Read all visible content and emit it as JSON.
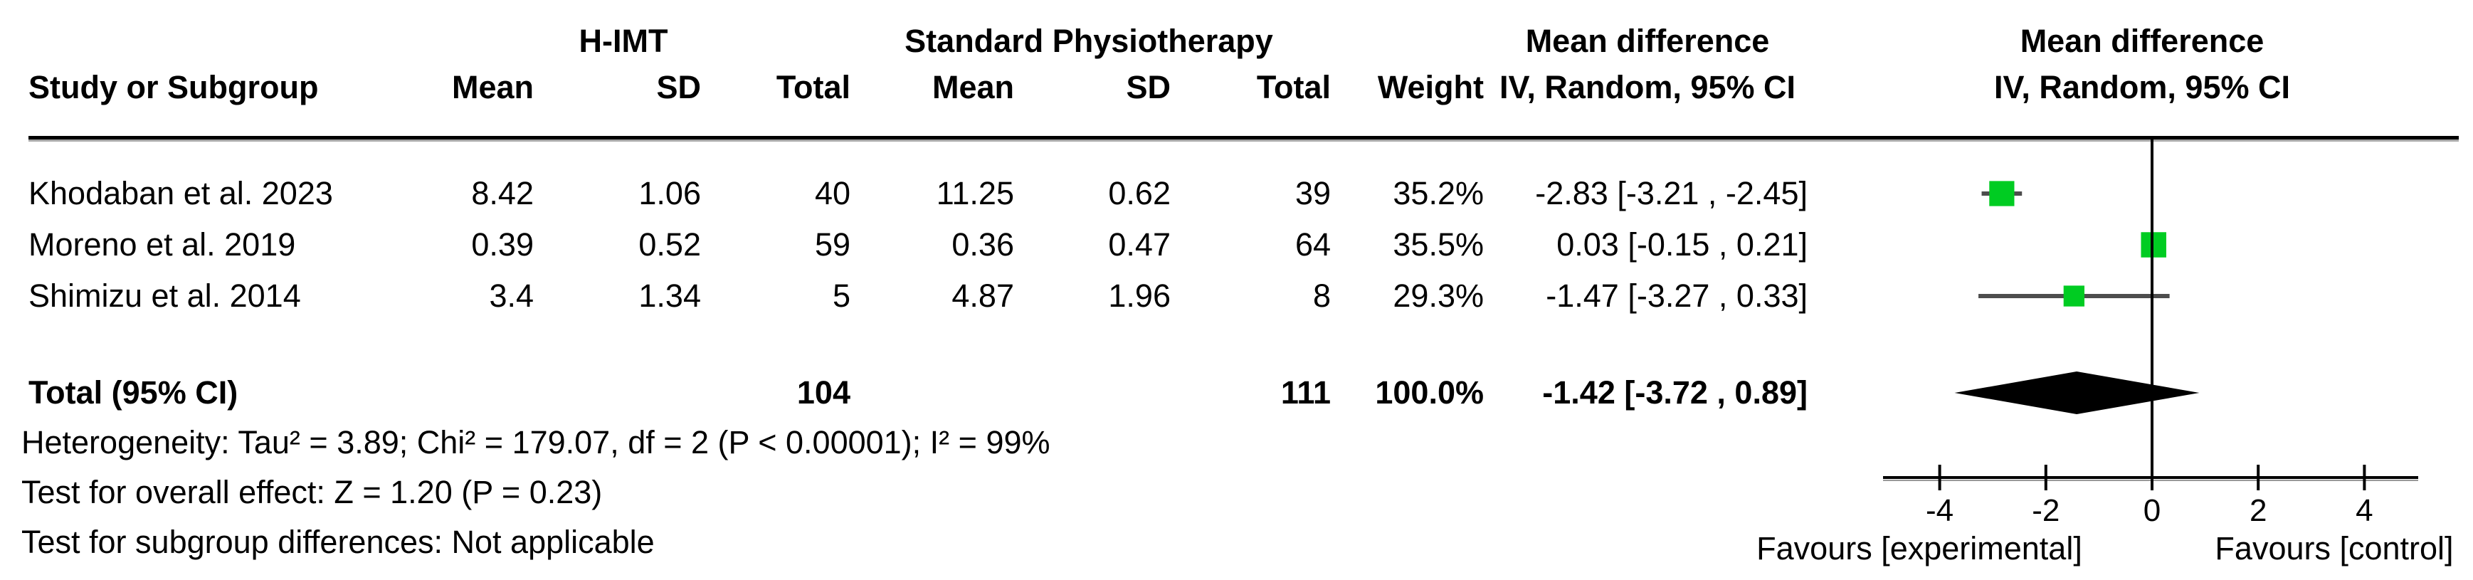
{
  "table": {
    "headers": {
      "study": "Study or Subgroup",
      "group1": "H-IMT",
      "group2": "Standard Physiotherapy",
      "mean1": "Mean",
      "sd1": "SD",
      "total1": "Total",
      "mean2": "Mean",
      "sd2": "SD",
      "total2": "Total",
      "weight": "Weight",
      "effect_title": "Mean difference",
      "effect_sub": "IV, Random, 95% CI",
      "plot_title": "Mean difference",
      "plot_sub": "IV, Random, 95% CI"
    },
    "rows": [
      {
        "study": "Khodaban et al. 2023",
        "mean1": "8.42",
        "sd1": "1.06",
        "total1": "40",
        "mean2": "11.25",
        "sd2": "0.62",
        "total2": "39",
        "weight": "35.2%",
        "ci": "-2.83 [-3.21 , -2.45]"
      },
      {
        "study": "Moreno et al. 2019",
        "mean1": "0.39",
        "sd1": "0.52",
        "total1": "59",
        "mean2": "0.36",
        "sd2": "0.47",
        "total2": "64",
        "weight": "35.5%",
        "ci": "0.03 [-0.15 , 0.21]"
      },
      {
        "study": "Shimizu et al. 2014",
        "mean1": "3.4",
        "sd1": "1.34",
        "total1": "5",
        "mean2": "4.87",
        "sd2": "1.96",
        "total2": "8",
        "weight": "29.3%",
        "ci": "-1.47 [-3.27 , 0.33]"
      }
    ],
    "total_row": {
      "label": "Total (95% CI)",
      "total1": "104",
      "total2": "111",
      "weight": "100.0%",
      "ci": "-1.42 [-3.72 , 0.89]"
    },
    "footnotes": [
      "Heterogeneity: Tau² = 3.89; Chi² = 179.07, df = 2 (P < 0.00001); I² = 99%",
      "Test for overall effect: Z = 1.20 (P = 0.23)",
      "Test for subgroup differences: Not applicable"
    ]
  },
  "plot": {
    "favours_left": "Favours [experimental]",
    "favours_right": "Favours [control]"
  },
  "colors": {
    "square": "#00CC22",
    "whisker": "#4D4D4D",
    "diamond": "#000000",
    "axis": "#000000",
    "axis_shadow": "#999999",
    "text": "#000000"
  },
  "chart_data": {
    "type": "forest",
    "effect_measure": "Mean difference, IV, Random, 95% CI",
    "studies": [
      {
        "name": "Khodaban et al. 2023",
        "estimate": -2.83,
        "ci_low": -3.21,
        "ci_high": -2.45,
        "weight_pct": 35.2
      },
      {
        "name": "Moreno et al. 2019",
        "estimate": 0.03,
        "ci_low": -0.15,
        "ci_high": 0.21,
        "weight_pct": 35.5
      },
      {
        "name": "Shimizu et al. 2014",
        "estimate": -1.47,
        "ci_low": -3.27,
        "ci_high": 0.33,
        "weight_pct": 29.3
      }
    ],
    "total": {
      "estimate": -1.42,
      "ci_low": -3.72,
      "ci_high": 0.89,
      "weight_pct": 100.0
    },
    "axis": {
      "min": -5,
      "max": 5,
      "ticks": [
        -4,
        -2,
        0,
        2,
        4
      ],
      "zero_line": 0
    }
  }
}
